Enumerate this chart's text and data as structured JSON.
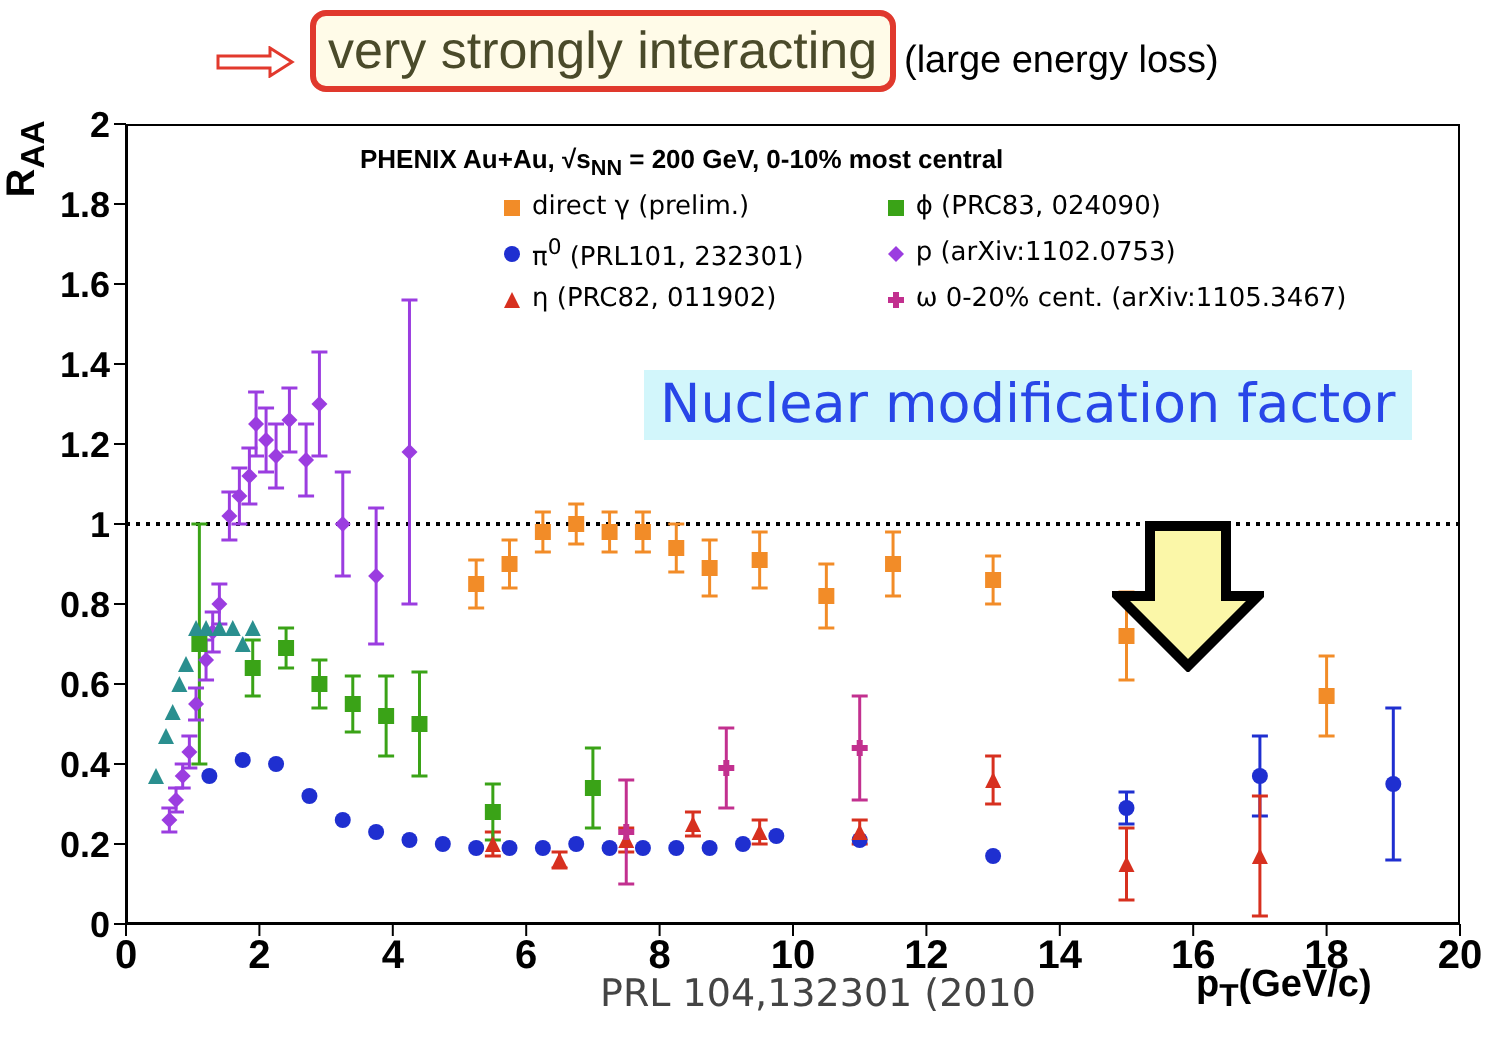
{
  "chart_data": {
    "type": "scatter",
    "title": "very strongly interacting",
    "subtitle": "(large energy loss)",
    "xlabel": "p$_{T}$(GeV/c)",
    "ylabel": "R$_{AA}$",
    "annotations": [
      "PHENIX Au+Au, √s$_{NN}$ = 200 GeV, 0-10% most central",
      "Nuclear modification factor",
      "PRL 104,132301 (2010"
    ],
    "xlim": [
      0,
      20
    ],
    "xticks": [
      0,
      2,
      4,
      6,
      8,
      10,
      12,
      14,
      16,
      18,
      20
    ],
    "ylim": [
      0,
      2
    ],
    "yticks": [
      0,
      0.2,
      0.4,
      0.6,
      0.8,
      1,
      1.2,
      1.4,
      1.6,
      1.8,
      2
    ],
    "legend": "top",
    "ref_lines": [
      {
        "axis": "y",
        "value": 1,
        "color": "#000000",
        "line_style": "dotted"
      }
    ],
    "series": [
      {
        "name": "direct γ (prelim.)",
        "color": "#f28c28",
        "marker": "square",
        "x": [
          5.25,
          5.75,
          6.25,
          6.75,
          7.25,
          7.75,
          8.25,
          8.75,
          9.5,
          10.5,
          11.5,
          13,
          15,
          18
        ],
        "values": [
          0.85,
          0.9,
          0.98,
          1.0,
          0.98,
          0.98,
          0.94,
          0.89,
          0.91,
          0.82,
          0.9,
          0.86,
          0.72,
          0.57
        ],
        "errors": [
          0.06,
          0.06,
          0.05,
          0.05,
          0.05,
          0.05,
          0.06,
          0.07,
          0.07,
          0.08,
          0.08,
          0.06,
          0.11,
          0.1
        ]
      },
      {
        "name": "π$^{0}$ (PRL101, 232301)",
        "color": "#1f2fd0",
        "marker": "circle",
        "x": [
          1.25,
          1.75,
          2.25,
          2.75,
          3.25,
          3.75,
          4.25,
          4.75,
          5.25,
          5.75,
          6.25,
          6.75,
          7.25,
          7.75,
          8.25,
          8.75,
          9.25,
          9.75,
          11,
          13,
          15,
          17,
          19
        ],
        "values": [
          0.37,
          0.41,
          0.4,
          0.32,
          0.26,
          0.23,
          0.21,
          0.2,
          0.19,
          0.19,
          0.19,
          0.2,
          0.19,
          0.19,
          0.19,
          0.19,
          0.2,
          0.22,
          0.21,
          0.17,
          0.29,
          0.37,
          0.35
        ],
        "errors": [
          null,
          null,
          null,
          null,
          null,
          null,
          null,
          null,
          null,
          null,
          null,
          null,
          null,
          null,
          null,
          null,
          null,
          null,
          null,
          null,
          0.04,
          0.1,
          0.19
        ]
      },
      {
        "name": "η (PRC82, 011902)",
        "color": "#d7301f",
        "marker": "triangle",
        "x": [
          5.5,
          6.5,
          7.5,
          8.5,
          9.5,
          11,
          13,
          15,
          17
        ],
        "values": [
          0.2,
          0.16,
          0.21,
          0.25,
          0.23,
          0.23,
          0.36,
          0.15,
          0.17
        ],
        "errors": [
          0.03,
          0.02,
          0.03,
          0.03,
          0.03,
          0.03,
          0.06,
          0.09,
          0.15
        ]
      },
      {
        "name": "ϕ (PRC83, 024090)",
        "color": "#3aa317",
        "marker": "square",
        "x": [
          1.1,
          1.9,
          2.4,
          2.9,
          3.4,
          3.9,
          4.4,
          5.5,
          7
        ],
        "values": [
          0.7,
          0.64,
          0.69,
          0.6,
          0.55,
          0.52,
          0.5,
          0.28,
          0.34
        ],
        "errors": [
          0.3,
          0.07,
          0.05,
          0.06,
          0.07,
          0.1,
          0.13,
          0.07,
          0.1
        ]
      },
      {
        "name": "p (arXiv:1102.0753)",
        "color": "#9b3de0",
        "marker": "diamond",
        "x": [
          0.65,
          0.75,
          0.85,
          0.95,
          1.05,
          1.2,
          1.3,
          1.4,
          1.55,
          1.7,
          1.85,
          1.95,
          2.1,
          2.25,
          2.45,
          2.7,
          2.9,
          3.25,
          3.75,
          4.25
        ],
        "values": [
          0.26,
          0.31,
          0.37,
          0.43,
          0.55,
          0.66,
          0.73,
          0.8,
          1.02,
          1.07,
          1.12,
          1.25,
          1.21,
          1.17,
          1.26,
          1.16,
          1.3,
          1.0,
          0.87,
          1.18
        ],
        "errors": [
          0.03,
          0.03,
          0.03,
          0.04,
          0.04,
          0.05,
          0.05,
          0.05,
          0.06,
          0.07,
          0.07,
          0.08,
          0.08,
          0.08,
          0.08,
          0.09,
          0.13,
          0.13,
          0.17,
          0.38
        ]
      },
      {
        "name": "ω 0-20% cent. (arXiv:1105.3467)",
        "color": "#c2308f",
        "marker": "cross",
        "x": [
          7.5,
          9,
          11
        ],
        "values": [
          0.23,
          0.39,
          0.44
        ],
        "errors": [
          0.13,
          0.1,
          0.13
        ]
      },
      {
        "color": "#2a8f8f",
        "marker": "triangle",
        "x": [
          0.45,
          0.6,
          0.7,
          0.8,
          0.9,
          1.05,
          1.2,
          1.4,
          1.6,
          1.75,
          1.9
        ],
        "values": [
          0.37,
          0.47,
          0.53,
          0.6,
          0.65,
          0.74,
          0.74,
          0.74,
          0.74,
          0.7,
          0.74
        ]
      }
    ]
  }
}
